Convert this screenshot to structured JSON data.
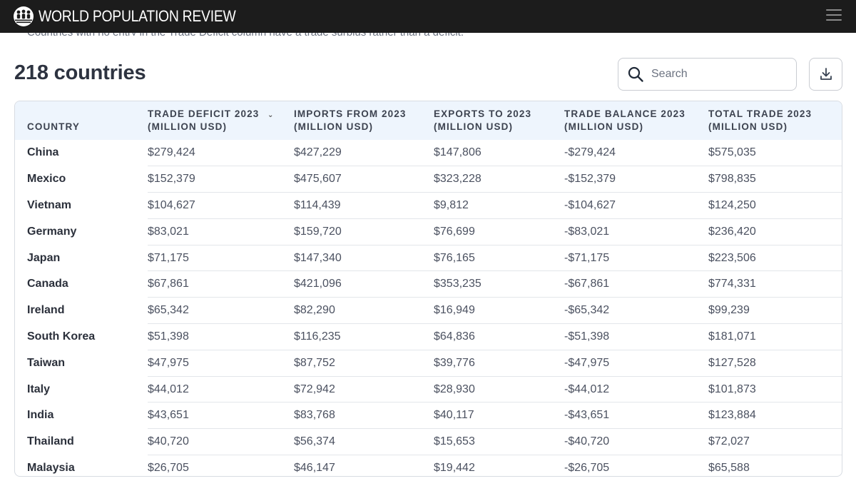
{
  "brand": {
    "name": "WORLD POPULATION REVIEW",
    "logo_icon": "globe-people-icon"
  },
  "header": {
    "menu_icon": "hamburger-menu-icon"
  },
  "note": "Countries with no entry in the Trade Deficit column have a trade surplus rather than a deficit.",
  "page_title": "218 countries",
  "search": {
    "placeholder": "Search",
    "value": ""
  },
  "download": {
    "icon": "download-icon"
  },
  "colors": {
    "topbar": "#1c1c1c",
    "header_row": "#eef5fd",
    "text": "#2d3340"
  },
  "table": {
    "columns": [
      {
        "key": "country",
        "label": "COUNTRY"
      },
      {
        "key": "deficit",
        "label": "TRADE DEFICIT 2023 (MILLION USD)",
        "sorted": "desc"
      },
      {
        "key": "imports",
        "label": "IMPORTS FROM 2023 (MILLION USD)"
      },
      {
        "key": "exports",
        "label": "EXPORTS TO 2023 (MILLION USD)"
      },
      {
        "key": "balance",
        "label": "TRADE BALANCE 2023 (MILLION USD)"
      },
      {
        "key": "total",
        "label": "TOTAL TRADE 2023 (MILLION USD)"
      }
    ],
    "rows": [
      {
        "country": "China",
        "deficit": "$279,424",
        "imports": "$427,229",
        "exports": "$147,806",
        "balance": "-$279,424",
        "total": "$575,035"
      },
      {
        "country": "Mexico",
        "deficit": "$152,379",
        "imports": "$475,607",
        "exports": "$323,228",
        "balance": "-$152,379",
        "total": "$798,835"
      },
      {
        "country": "Vietnam",
        "deficit": "$104,627",
        "imports": "$114,439",
        "exports": "$9,812",
        "balance": "-$104,627",
        "total": "$124,250"
      },
      {
        "country": "Germany",
        "deficit": "$83,021",
        "imports": "$159,720",
        "exports": "$76,699",
        "balance": "-$83,021",
        "total": "$236,420"
      },
      {
        "country": "Japan",
        "deficit": "$71,175",
        "imports": "$147,340",
        "exports": "$76,165",
        "balance": "-$71,175",
        "total": "$223,506"
      },
      {
        "country": "Canada",
        "deficit": "$67,861",
        "imports": "$421,096",
        "exports": "$353,235",
        "balance": "-$67,861",
        "total": "$774,331"
      },
      {
        "country": "Ireland",
        "deficit": "$65,342",
        "imports": "$82,290",
        "exports": "$16,949",
        "balance": "-$65,342",
        "total": "$99,239"
      },
      {
        "country": "South Korea",
        "deficit": "$51,398",
        "imports": "$116,235",
        "exports": "$64,836",
        "balance": "-$51,398",
        "total": "$181,071"
      },
      {
        "country": "Taiwan",
        "deficit": "$47,975",
        "imports": "$87,752",
        "exports": "$39,776",
        "balance": "-$47,975",
        "total": "$127,528"
      },
      {
        "country": "Italy",
        "deficit": "$44,012",
        "imports": "$72,942",
        "exports": "$28,930",
        "balance": "-$44,012",
        "total": "$101,873"
      },
      {
        "country": "India",
        "deficit": "$43,651",
        "imports": "$83,768",
        "exports": "$40,117",
        "balance": "-$43,651",
        "total": "$123,884"
      },
      {
        "country": "Thailand",
        "deficit": "$40,720",
        "imports": "$56,374",
        "exports": "$15,653",
        "balance": "-$40,720",
        "total": "$72,027"
      },
      {
        "country": "Malaysia",
        "deficit": "$26,705",
        "imports": "$46,147",
        "exports": "$19,442",
        "balance": "-$26,705",
        "total": "$65,588"
      }
    ]
  }
}
